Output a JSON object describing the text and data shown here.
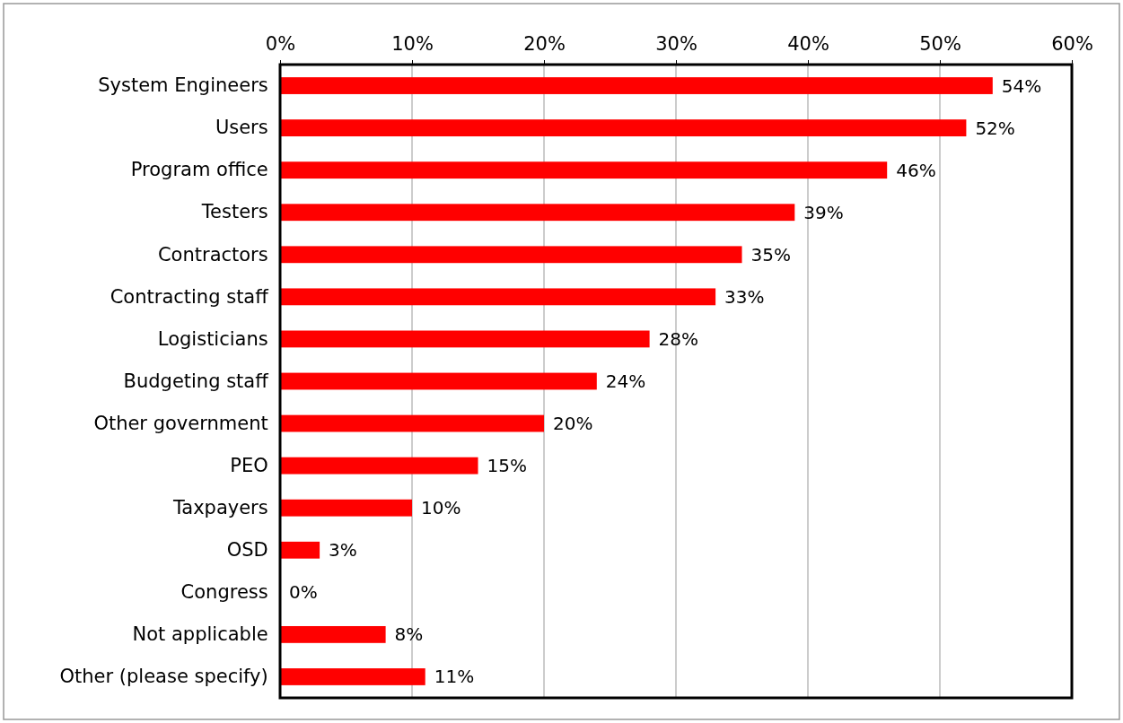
{
  "chart_data": {
    "type": "bar",
    "orientation": "horizontal",
    "categories": [
      "System Engineers",
      "Users",
      "Program office",
      "Testers",
      "Contractors",
      "Contracting staff",
      "Logisticians",
      "Budgeting staff",
      "Other government",
      "PEO",
      "Taxpayers",
      "OSD",
      "Congress",
      "Not applicable",
      "Other (please specify)"
    ],
    "values": [
      54,
      52,
      46,
      39,
      35,
      33,
      28,
      24,
      20,
      15,
      10,
      3,
      0,
      8,
      11
    ],
    "value_labels": [
      "54%",
      "52%",
      "46%",
      "39%",
      "35%",
      "33%",
      "28%",
      "24%",
      "20%",
      "15%",
      "10%",
      "3%",
      "0%",
      "8%",
      "11%"
    ],
    "color": "#ff0000",
    "xlim": [
      0,
      60
    ],
    "xticks": [
      {
        "value": 0,
        "label": "0%"
      },
      {
        "value": 10,
        "label": "10%"
      },
      {
        "value": 20,
        "label": "20%"
      },
      {
        "value": 30,
        "label": "30%"
      },
      {
        "value": 40,
        "label": "40%"
      },
      {
        "value": 50,
        "label": "50%"
      },
      {
        "value": 60,
        "label": "60%"
      }
    ],
    "grid": "x"
  }
}
